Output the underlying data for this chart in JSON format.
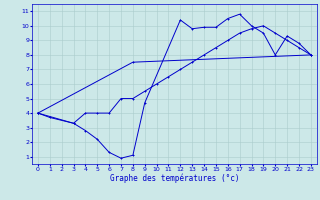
{
  "title": "Graphe des températures (°c)",
  "bg_color": "#cce8e8",
  "grid_color": "#aacccc",
  "line_color": "#0000cc",
  "xlim": [
    -0.5,
    23.5
  ],
  "ylim": [
    0.5,
    11.5
  ],
  "xticks": [
    0,
    1,
    2,
    3,
    4,
    5,
    6,
    7,
    8,
    9,
    10,
    11,
    12,
    13,
    14,
    15,
    16,
    17,
    18,
    19,
    20,
    21,
    22,
    23
  ],
  "yticks": [
    1,
    2,
    3,
    4,
    5,
    6,
    7,
    8,
    9,
    10,
    11
  ],
  "line1_x": [
    0,
    1,
    3,
    4,
    5,
    6,
    7,
    8,
    9,
    10,
    11,
    12,
    13,
    14,
    15,
    16,
    17,
    18,
    19,
    20,
    21,
    22,
    23
  ],
  "line1_y": [
    4.0,
    3.7,
    3.3,
    4.0,
    4.0,
    4.0,
    5.0,
    5.0,
    5.5,
    6.0,
    6.5,
    7.0,
    7.5,
    8.0,
    8.5,
    9.0,
    9.5,
    9.8,
    10.0,
    9.5,
    9.0,
    8.5,
    8.0
  ],
  "line2_x": [
    0,
    3,
    4,
    5,
    6,
    7,
    8,
    9,
    12,
    13,
    14,
    15,
    16,
    17,
    18,
    19,
    20,
    21,
    22,
    23
  ],
  "line2_y": [
    4.0,
    3.3,
    2.8,
    2.2,
    1.3,
    0.9,
    1.1,
    4.7,
    10.4,
    9.8,
    9.9,
    9.9,
    10.5,
    10.8,
    10.0,
    9.5,
    8.0,
    9.3,
    8.8,
    8.0
  ],
  "line3_x": [
    0,
    8,
    23
  ],
  "line3_y": [
    4.0,
    7.5,
    8.0
  ],
  "xlabel_fontsize": 5.5,
  "ylabel_fontsize": 5.5,
  "tick_fontsize": 4.5,
  "linewidth": 0.7,
  "markersize": 2.0
}
